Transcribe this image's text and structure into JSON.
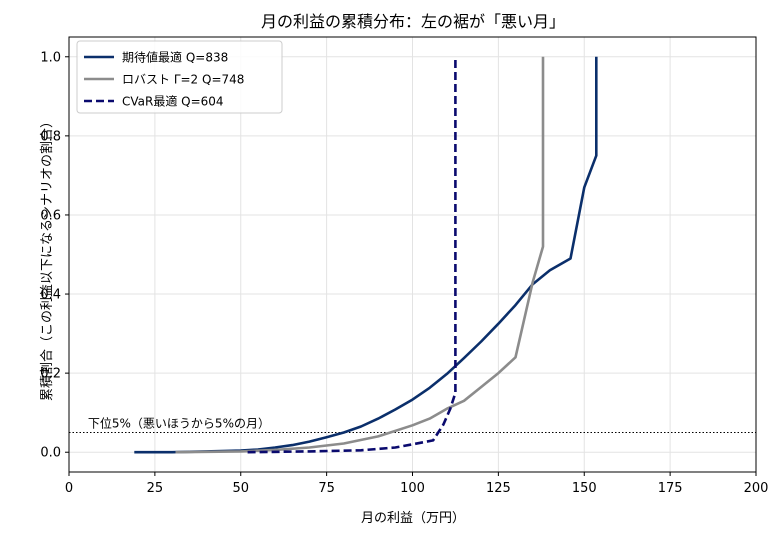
{
  "chart_data": {
    "type": "line",
    "title": "月の利益の累積分布：左の裾が「悪い月」",
    "xlabel": "月の利益（万円）",
    "ylabel": "累積割合（この利益以下になるシナリオの割合）",
    "xlim": [
      0,
      200
    ],
    "ylim": [
      -0.05,
      1.05
    ],
    "xticks": [
      0,
      25,
      50,
      75,
      100,
      125,
      150,
      175,
      200
    ],
    "yticks": [
      0.0,
      0.2,
      0.4,
      0.6,
      0.8,
      1.0
    ],
    "ytick_labels": [
      "0.0",
      "0.2",
      "0.4",
      "0.6",
      "0.8",
      "1.0"
    ],
    "grid": true,
    "legend_position": "top-left",
    "series": [
      {
        "name": "期待値最適 Q=838",
        "color": "#0b2f6b",
        "style": "solid",
        "points": [
          [
            19,
            0.0
          ],
          [
            30,
            0.0
          ],
          [
            40,
            0.002
          ],
          [
            50,
            0.004
          ],
          [
            55,
            0.007
          ],
          [
            60,
            0.012
          ],
          [
            65,
            0.018
          ],
          [
            70,
            0.027
          ],
          [
            75,
            0.038
          ],
          [
            80,
            0.05
          ],
          [
            85,
            0.065
          ],
          [
            90,
            0.085
          ],
          [
            95,
            0.108
          ],
          [
            100,
            0.133
          ],
          [
            105,
            0.163
          ],
          [
            110,
            0.198
          ],
          [
            115,
            0.238
          ],
          [
            120,
            0.28
          ],
          [
            125,
            0.325
          ],
          [
            130,
            0.372
          ],
          [
            135,
            0.425
          ],
          [
            140,
            0.46
          ],
          [
            146,
            0.49
          ],
          [
            150,
            0.67
          ],
          [
            153.5,
            0.75
          ],
          [
            153.5,
            1.0
          ]
        ]
      },
      {
        "name": "ロバスト Γ=2 Q=748",
        "color": "#8c8c8c",
        "style": "solid",
        "points": [
          [
            31,
            0.0
          ],
          [
            50,
            0.002
          ],
          [
            60,
            0.006
          ],
          [
            70,
            0.012
          ],
          [
            80,
            0.022
          ],
          [
            90,
            0.04
          ],
          [
            100,
            0.068
          ],
          [
            105,
            0.085
          ],
          [
            110,
            0.11
          ],
          [
            115,
            0.13
          ],
          [
            120,
            0.165
          ],
          [
            125,
            0.2
          ],
          [
            130,
            0.24
          ],
          [
            135,
            0.43
          ],
          [
            138,
            0.52
          ],
          [
            138,
            1.0
          ]
        ]
      },
      {
        "name": "CVaR最適 Q=604",
        "color": "#0a0a6e",
        "style": "dashed",
        "points": [
          [
            52,
            0.0
          ],
          [
            70,
            0.002
          ],
          [
            85,
            0.005
          ],
          [
            95,
            0.012
          ],
          [
            100,
            0.02
          ],
          [
            106,
            0.03
          ],
          [
            109,
            0.07
          ],
          [
            111,
            0.11
          ],
          [
            112.5,
            0.15
          ],
          [
            112.5,
            1.0
          ]
        ]
      }
    ],
    "reference_line": {
      "y": 0.05,
      "label": "下位5%（悪いほうから5%の月）"
    }
  }
}
